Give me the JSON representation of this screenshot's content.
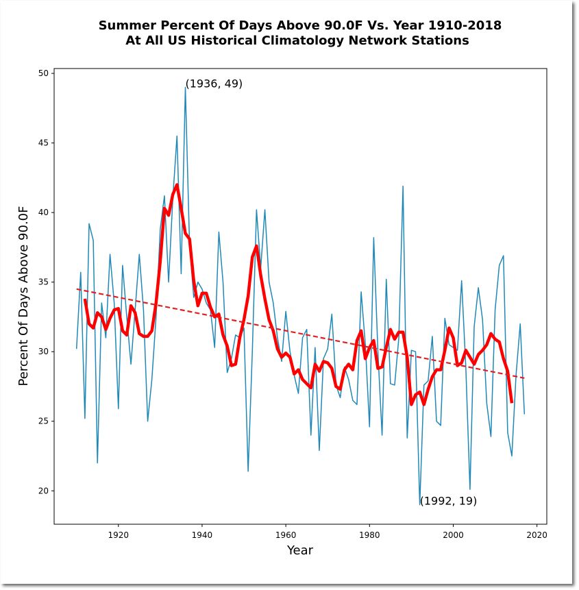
{
  "chart_data": {
    "type": "line",
    "title": [
      "Summer Percent Of Days Above 90.0F Vs. Year 1910-2018",
      "At All US Historical Climatology Network Stations"
    ],
    "x_label": "Year",
    "y_label": "Percent Of Days Above 90.0F",
    "x": [
      1910,
      1911,
      1912,
      1913,
      1914,
      1915,
      1916,
      1917,
      1918,
      1919,
      1920,
      1921,
      1922,
      1923,
      1924,
      1925,
      1926,
      1927,
      1928,
      1929,
      1930,
      1931,
      1932,
      1933,
      1934,
      1935,
      1936,
      1937,
      1938,
      1939,
      1940,
      1941,
      1942,
      1943,
      1944,
      1945,
      1946,
      1947,
      1948,
      1949,
      1950,
      1951,
      1952,
      1953,
      1954,
      1955,
      1956,
      1957,
      1958,
      1959,
      1960,
      1961,
      1962,
      1963,
      1964,
      1965,
      1966,
      1967,
      1968,
      1969,
      1970,
      1971,
      1972,
      1973,
      1974,
      1975,
      1976,
      1977,
      1978,
      1979,
      1980,
      1981,
      1982,
      1983,
      1984,
      1985,
      1986,
      1987,
      1988,
      1989,
      1990,
      1991,
      1992,
      1993,
      1994,
      1995,
      1996,
      1997,
      1998,
      1999,
      2000,
      2001,
      2002,
      2003,
      2004,
      2005,
      2006,
      2007,
      2008,
      2009,
      2010,
      2011,
      2012,
      2013,
      2014,
      2015,
      2016,
      2017
    ],
    "series": [
      {
        "color": "#1f88b8",
        "width": 1.5,
        "values": [
          30.2,
          35.7,
          25.2,
          39.2,
          38.0,
          22.0,
          33.5,
          31.0,
          37.0,
          33.5,
          25.9,
          36.2,
          32.5,
          29.1,
          33.0,
          37.0,
          33.0,
          25.0,
          28.0,
          32.5,
          38.8,
          41.2,
          35.0,
          41.0,
          45.5,
          35.6,
          49.0,
          37.7,
          33.9,
          35.0,
          34.5,
          33.5,
          33.0,
          30.3,
          38.6,
          35.0,
          28.5,
          29.5,
          31.2,
          31.0,
          31.7,
          21.4,
          30.0,
          40.2,
          36.0,
          40.2,
          35.0,
          33.5,
          31.0,
          29.3,
          32.9,
          30.0,
          28.3,
          27.0,
          31.0,
          31.6,
          24.0,
          30.3,
          22.9,
          29.5,
          30.2,
          32.7,
          27.6,
          26.7,
          28.9,
          28.0,
          26.5,
          26.2,
          34.3,
          30.5,
          24.6,
          38.2,
          30.0,
          24.0,
          35.2,
          27.7,
          27.6,
          31.0,
          41.9,
          23.8,
          30.1,
          30.0,
          19.0,
          27.6,
          27.9,
          31.1,
          25.0,
          24.7,
          32.4,
          30.5,
          30.3,
          30.1,
          35.1,
          28.9,
          20.1,
          31.8,
          34.6,
          32.3,
          26.3,
          23.9,
          33.0,
          36.2,
          36.9,
          24.2,
          22.5,
          28.3,
          32.0,
          25.5
        ]
      },
      {
        "color": "#ff0000",
        "width": 4.5,
        "values": [
          null,
          null,
          33.8,
          32.0,
          31.7,
          32.8,
          32.5,
          31.6,
          32.4,
          33.0,
          33.1,
          31.5,
          31.2,
          33.3,
          32.8,
          31.3,
          31.1,
          31.1,
          31.5,
          33.5,
          36.5,
          40.3,
          39.8,
          41.3,
          42.0,
          40.3,
          38.5,
          38.1,
          35.1,
          33.3,
          34.2,
          34.2,
          33.2,
          32.5,
          32.7,
          31.2,
          30.4,
          29.0,
          29.1,
          31.0,
          32.3,
          34.0,
          36.8,
          37.6,
          35.5,
          33.8,
          32.3,
          31.5,
          30.2,
          29.6,
          29.9,
          29.6,
          28.4,
          28.7,
          28.0,
          27.7,
          27.4,
          29.1,
          28.6,
          29.3,
          29.2,
          28.8,
          27.5,
          27.3,
          28.7,
          29.1,
          28.7,
          30.8,
          31.5,
          29.5,
          30.3,
          30.8,
          28.8,
          28.9,
          30.3,
          31.6,
          30.9,
          31.4,
          31.4,
          29.6,
          26.2,
          26.9,
          27.1,
          26.2,
          27.3,
          28.2,
          28.7,
          28.7,
          30.1,
          31.7,
          31.0,
          29.0,
          29.2,
          30.1,
          29.6,
          29.1,
          29.8,
          30.1,
          30.5,
          31.3,
          30.9,
          30.7,
          29.5,
          28.6,
          26.3,
          null,
          null,
          null
        ]
      }
    ],
    "trend": {
      "x": [
        1910,
        2017
      ],
      "values": [
        34.5,
        28.1
      ],
      "color": "#e02020",
      "dashed": true
    },
    "annotations": [
      {
        "text": "(1936, 49)",
        "x": 1936,
        "y": 49
      },
      {
        "text": "(1992, 19)",
        "x": 1992,
        "y": 19
      }
    ],
    "xlim": [
      1904.65,
      2022.35
    ],
    "ylim": [
      17.6,
      50.35
    ],
    "xticks": [
      1920,
      1940,
      1960,
      1980,
      2000,
      2020
    ],
    "yticks": [
      20,
      25,
      30,
      35,
      40,
      45,
      50
    ]
  }
}
